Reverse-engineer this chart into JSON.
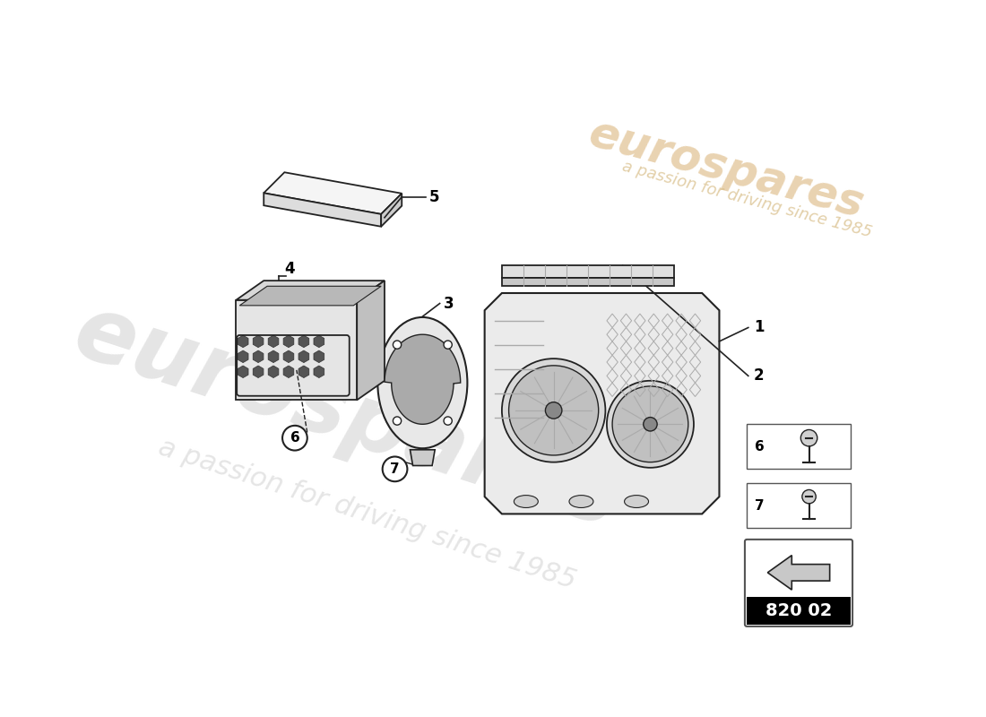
{
  "bg_color": "#ffffff",
  "line_color": "#222222",
  "light_gray": "#e8e8e8",
  "mid_gray": "#c8c8c8",
  "dark_gray": "#999999",
  "catalog_number": "820 02",
  "watermark1": "eurospares",
  "watermark2": "a passion for driving since 1985",
  "wm_color": "#cccccc",
  "label_fs": 12,
  "part_labels": [
    "1",
    "2",
    "3",
    "4",
    "5",
    "6",
    "7"
  ]
}
